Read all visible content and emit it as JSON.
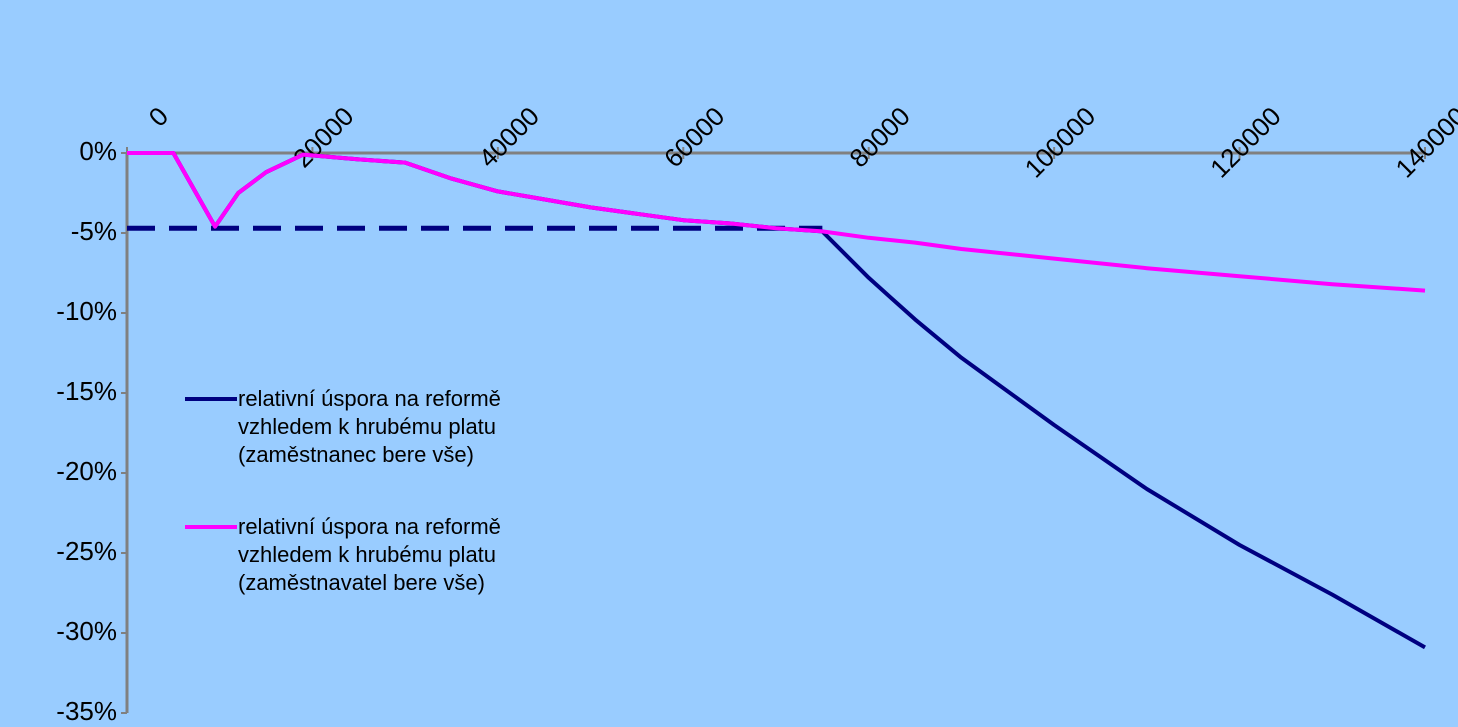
{
  "chart_data": {
    "type": "line",
    "x": [
      0,
      5000,
      9500,
      12000,
      15000,
      19000,
      25000,
      30000,
      35000,
      40000,
      45000,
      50000,
      55000,
      60000,
      65000,
      70000,
      75000,
      80000,
      85000,
      90000,
      100000,
      110000,
      120000,
      130000,
      140000
    ],
    "series": [
      {
        "name": "relativní úspora na reformě vzhledem k hrubému platu (zaměstnanec bere vše)",
        "color": "#000080",
        "values": [
          0,
          0,
          -4.6,
          -2.5,
          -1.2,
          -0.1,
          -0.4,
          -0.6,
          -1.6,
          -2.4,
          -2.9,
          -3.4,
          -3.8,
          -4.2,
          -4.4,
          -4.7,
          -4.9,
          -7.8,
          -10.4,
          -12.8,
          -17,
          -21,
          -24.5,
          -27.6,
          -30.9
        ]
      },
      {
        "name": "relativní úspora na reformě vzhledem k hrubému platu (zaměstnavatel bere vše)",
        "color": "#ff00ff",
        "values": [
          0,
          0,
          -4.6,
          -2.5,
          -1.2,
          -0.1,
          -0.4,
          -0.6,
          -1.6,
          -2.4,
          -2.9,
          -3.4,
          -3.8,
          -4.2,
          -4.4,
          -4.7,
          -4.9,
          -5.3,
          -5.6,
          -6.0,
          -6.6,
          -7.2,
          -7.7,
          -8.2,
          -8.6
        ]
      },
      {
        "color": "#000080",
        "dashed": true,
        "values": [
          -4.7,
          -4.7,
          -4.7,
          -4.7,
          -4.7,
          -4.7,
          -4.7,
          -4.7,
          -4.7,
          -4.7,
          -4.7,
          -4.7,
          -4.7,
          -4.7,
          -4.7,
          -4.7,
          -4.7,
          null,
          null,
          null,
          null,
          null,
          null,
          null,
          null
        ]
      }
    ],
    "xlim": [
      0,
      140000
    ],
    "xticks": [
      0,
      20000,
      40000,
      60000,
      80000,
      100000,
      120000,
      140000
    ],
    "ylim": [
      -35,
      0
    ],
    "yticks": [
      {
        "value": 0,
        "label": "0%"
      },
      {
        "value": -5,
        "label": "-5%"
      },
      {
        "value": -10,
        "label": "-10%"
      },
      {
        "value": -15,
        "label": "-15%"
      },
      {
        "value": -20,
        "label": "-20%"
      },
      {
        "value": -25,
        "label": "-25%"
      },
      {
        "value": -30,
        "label": "-30%"
      },
      {
        "value": -35,
        "label": "-35%"
      }
    ],
    "x_axis_position": "top",
    "grid": false
  }
}
